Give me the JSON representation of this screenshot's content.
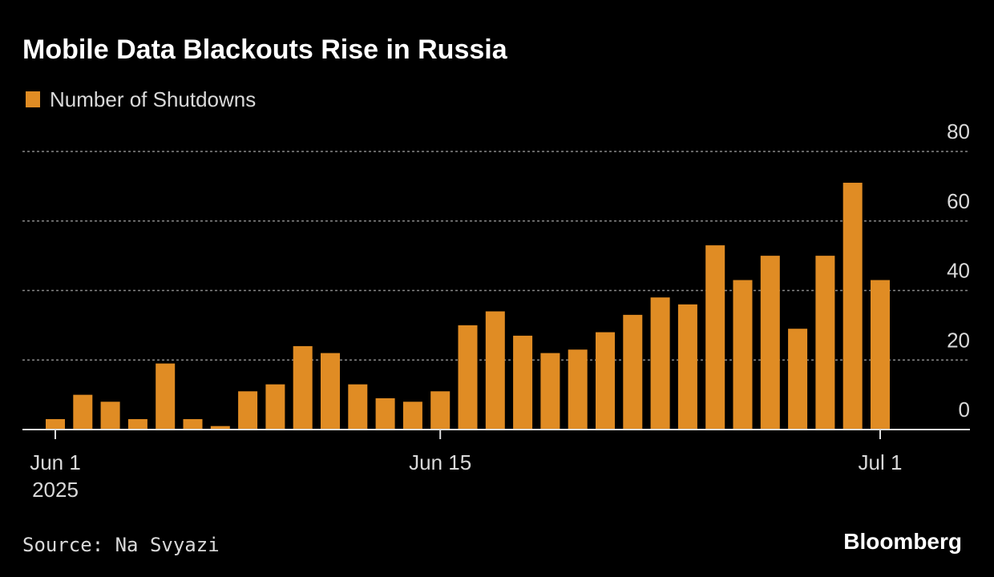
{
  "chart_data": {
    "type": "bar",
    "title": "Mobile Data Blackouts Rise in Russia",
    "source": "Source: Na Svyazi",
    "brand": "Bloomberg",
    "x": [
      "2025-06-01",
      "2025-06-02",
      "2025-06-03",
      "2025-06-04",
      "2025-06-05",
      "2025-06-06",
      "2025-06-07",
      "2025-06-08",
      "2025-06-09",
      "2025-06-10",
      "2025-06-11",
      "2025-06-12",
      "2025-06-13",
      "2025-06-14",
      "2025-06-15",
      "2025-06-16",
      "2025-06-17",
      "2025-06-18",
      "2025-06-19",
      "2025-06-20",
      "2025-06-21",
      "2025-06-22",
      "2025-06-23",
      "2025-06-24",
      "2025-06-25",
      "2025-06-26",
      "2025-06-27",
      "2025-06-28",
      "2025-06-29",
      "2025-06-30",
      "2025-07-01"
    ],
    "series": [
      {
        "name": "Number of Shutdowns",
        "color": "#e08c24",
        "values": [
          3,
          10,
          8,
          3,
          19,
          3,
          1,
          11,
          13,
          24,
          22,
          13,
          9,
          8,
          11,
          30,
          34,
          27,
          22,
          23,
          28,
          33,
          38,
          36,
          53,
          43,
          50,
          29,
          50,
          71,
          43
        ]
      }
    ],
    "xticks": [
      {
        "value": "2025-06-01",
        "label": "Jun 1"
      },
      {
        "value": "2025-06-15",
        "label": "Jun 15"
      },
      {
        "value": "2025-07-01",
        "label": "Jul 1"
      }
    ],
    "xtick_year": "2025",
    "ylim": [
      0,
      80
    ],
    "yticks": [
      0,
      20,
      40,
      60,
      80
    ],
    "grid": true,
    "legend": "top-left"
  }
}
